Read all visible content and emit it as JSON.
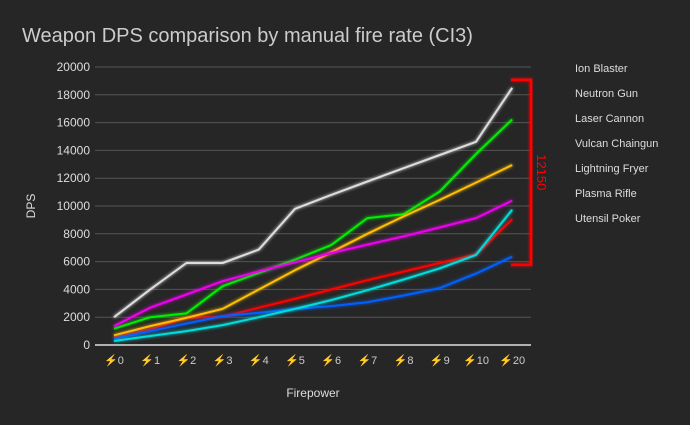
{
  "chart_data": {
    "type": "line",
    "title": "Weapon DPS comparison by manual fire rate (CI3)",
    "xlabel": "Firepower",
    "ylabel": "DPS",
    "ylim": [
      0,
      20000
    ],
    "yticks": [
      0,
      2000,
      4000,
      6000,
      8000,
      10000,
      12000,
      14000,
      16000,
      18000,
      20000
    ],
    "categories": [
      "⚡0",
      "⚡1",
      "⚡2",
      "⚡3",
      "⚡4",
      "⚡5",
      "⚡6",
      "⚡7",
      "⚡8",
      "⚡9",
      "⚡10",
      "⚡20"
    ],
    "grid": true,
    "legend_placement": "right",
    "series": [
      {
        "name": "Ion Blaster",
        "color": "#ff0000",
        "values": [
          530,
          1120,
          1960,
          2030,
          2680,
          3320,
          3990,
          4660,
          5280,
          5900,
          6500,
          9060
        ]
      },
      {
        "name": "Neutron Gun",
        "color": "#00ee00",
        "values": [
          1170,
          2000,
          2270,
          4230,
          5190,
          6140,
          7190,
          9130,
          9410,
          11040,
          13740,
          16220
        ]
      },
      {
        "name": "Laser Cannon",
        "color": "#ffbf00",
        "values": [
          690,
          1360,
          1960,
          2600,
          3990,
          5380,
          6670,
          8000,
          9250,
          10440,
          11680,
          12950
        ]
      },
      {
        "name": "Vulcan Chaingun",
        "color": "#0060ff",
        "values": [
          450,
          1000,
          1550,
          2080,
          2320,
          2600,
          2800,
          3080,
          3560,
          4090,
          5140,
          6350
        ]
      },
      {
        "name": "Lightning Fryer",
        "color": "#00dddd",
        "values": [
          290,
          650,
          1000,
          1430,
          2000,
          2600,
          3230,
          3940,
          4710,
          5520,
          6480,
          9730
        ]
      },
      {
        "name": "Plasma Rifle",
        "color": "#ee00ee",
        "values": [
          1360,
          2680,
          3630,
          4590,
          5300,
          5950,
          6620,
          7220,
          7810,
          8460,
          9130,
          10390
        ]
      },
      {
        "name": "Utensil Poker",
        "color": "#dddddd",
        "values": [
          2000,
          4000,
          5900,
          5900,
          6860,
          9800,
          10800,
          11760,
          12720,
          13670,
          14620,
          18500
        ]
      }
    ],
    "annotation": {
      "text": "12150",
      "color": "#ff0000"
    }
  }
}
